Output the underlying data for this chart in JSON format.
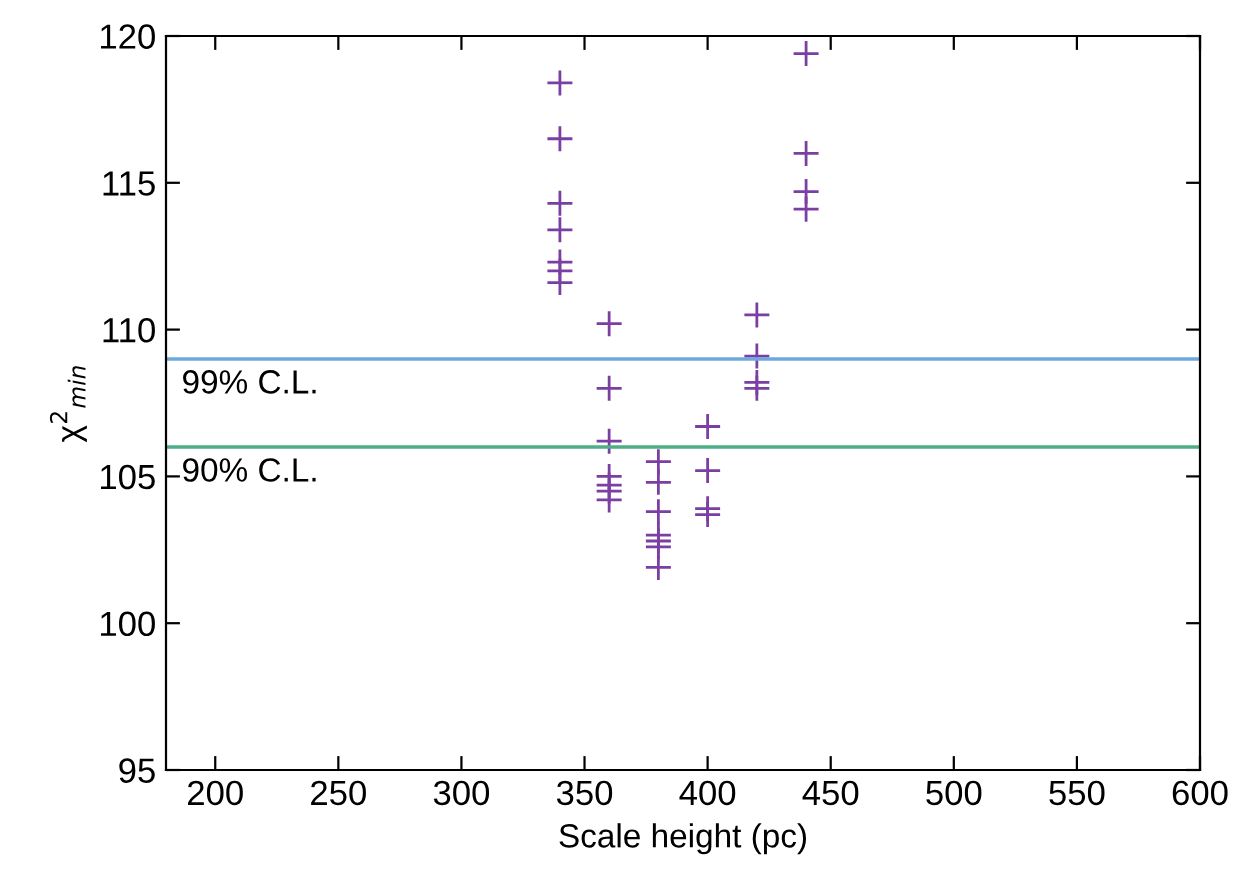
{
  "chart_data": {
    "type": "scatter",
    "xlabel": "Scale height (pc)",
    "ylabel": "χ$^{2}$$_{min}$",
    "xlim": [
      180,
      600
    ],
    "xticks": [
      200,
      250,
      300,
      350,
      400,
      450,
      500,
      550,
      600
    ],
    "ylim": [
      95,
      120
    ],
    "yticks": [
      95,
      100,
      105,
      110,
      115,
      120
    ],
    "marker": "cross",
    "grid": false,
    "legend": false,
    "series": [
      {
        "color": "#7b3fa3",
        "x": [
          340,
          340,
          340,
          340,
          340,
          340,
          340,
          360,
          360,
          360,
          360,
          360,
          360,
          360,
          380,
          380,
          380,
          380,
          380,
          380,
          380,
          400,
          400,
          400,
          400,
          420,
          420,
          420,
          420,
          440,
          440,
          440,
          440
        ],
        "values": [
          118.4,
          116.5,
          114.3,
          113.4,
          112.3,
          112.0,
          111.6,
          110.2,
          108.0,
          106.2,
          105.0,
          104.7,
          104.5,
          104.2,
          105.5,
          104.8,
          103.8,
          103.0,
          102.8,
          102.6,
          101.9,
          106.7,
          105.2,
          103.9,
          103.7,
          110.5,
          109.1,
          108.2,
          108.0,
          119.4,
          116.0,
          114.7,
          114.1
        ]
      }
    ],
    "ref_lines": [
      {
        "axis": "y",
        "value": 109,
        "label": "99% C.L.",
        "color": "#6fa8dc"
      },
      {
        "axis": "y",
        "value": 106,
        "label": "90% C.L.",
        "color": "#4caf86"
      }
    ]
  }
}
